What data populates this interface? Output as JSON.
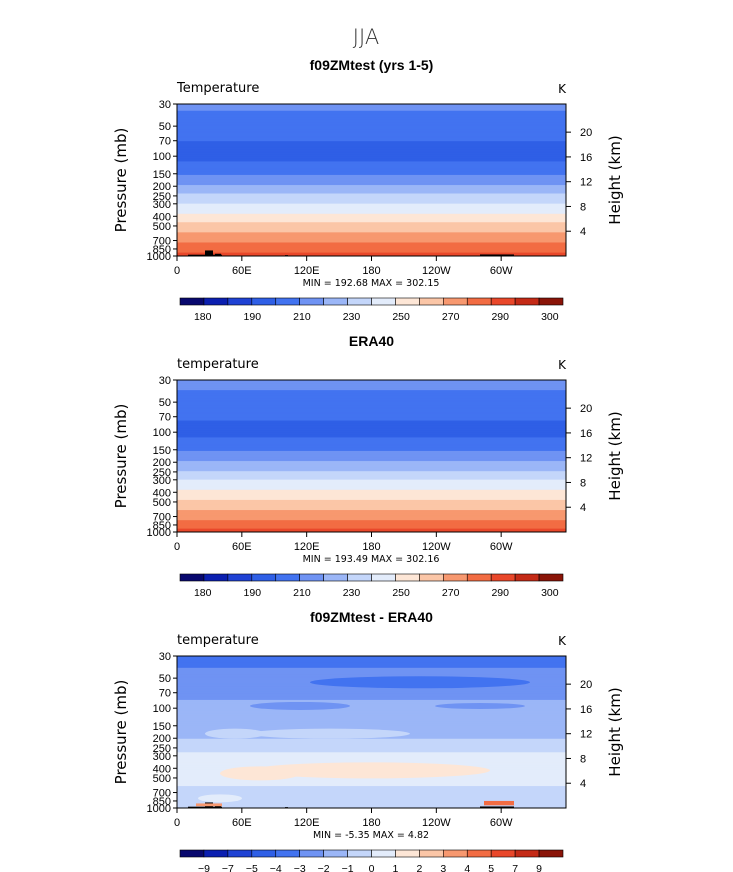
{
  "figure": {
    "suptitle": "JJA"
  },
  "chart_data": [
    {
      "type": "heatmap",
      "title": "f09ZMtest (yrs 1-5)",
      "variable_label": "Temperature",
      "units_label": "K",
      "ylabel": "Pressure  (mb)",
      "y2label": "Height  (km)",
      "xticks": [
        "0",
        "60E",
        "120E",
        "180",
        "120W",
        "60W"
      ],
      "xlim_deg": [
        0,
        360
      ],
      "yticks": [
        30,
        50,
        70,
        100,
        150,
        200,
        250,
        300,
        400,
        500,
        700,
        850,
        1000
      ],
      "ylim": [
        30,
        1000
      ],
      "y_scale": "log",
      "y2ticks": [
        20,
        16,
        12,
        8,
        4
      ],
      "stats": "MIN = 192.68  MAX = 302.15",
      "min": 192.68,
      "max": 302.15,
      "levels": [
        180,
        185,
        190,
        200,
        210,
        220,
        230,
        240,
        250,
        260,
        270,
        280,
        290,
        295,
        300
      ],
      "colorbar_labels": [
        "180",
        "190",
        "210",
        "230",
        "250",
        "270",
        "290",
        "300"
      ],
      "profile": [
        [
          30,
          212
        ],
        [
          50,
          205
        ],
        [
          70,
          200
        ],
        [
          100,
          196
        ],
        [
          150,
          208
        ],
        [
          200,
          222
        ],
        [
          250,
          232
        ],
        [
          300,
          241
        ],
        [
          400,
          253
        ],
        [
          500,
          263
        ],
        [
          700,
          278
        ],
        [
          850,
          287
        ],
        [
          1000,
          294
        ]
      ],
      "terrain": true
    },
    {
      "type": "heatmap",
      "title": "ERA40",
      "variable_label": "temperature",
      "units_label": "K",
      "ylabel": "Pressure  (mb)",
      "y2label": "Height  (km)",
      "xticks": [
        "0",
        "60E",
        "120E",
        "180",
        "120W",
        "60W"
      ],
      "xlim_deg": [
        0,
        360
      ],
      "yticks": [
        30,
        50,
        70,
        100,
        150,
        200,
        250,
        300,
        400,
        500,
        700,
        850,
        1000
      ],
      "ylim": [
        30,
        1000
      ],
      "y_scale": "log",
      "y2ticks": [
        20,
        16,
        12,
        8,
        4
      ],
      "stats": "MIN = 193.49  MAX = 302.16",
      "min": 193.49,
      "max": 302.16,
      "levels": [
        180,
        185,
        190,
        200,
        210,
        220,
        230,
        240,
        250,
        260,
        270,
        280,
        290,
        295,
        300
      ],
      "colorbar_labels": [
        "180",
        "190",
        "210",
        "230",
        "250",
        "270",
        "290",
        "300"
      ],
      "profile": [
        [
          30,
          213
        ],
        [
          50,
          206
        ],
        [
          70,
          201
        ],
        [
          100,
          197
        ],
        [
          150,
          209
        ],
        [
          200,
          221
        ],
        [
          250,
          231
        ],
        [
          300,
          240
        ],
        [
          400,
          252
        ],
        [
          500,
          262
        ],
        [
          700,
          277
        ],
        [
          850,
          286
        ],
        [
          1000,
          294
        ]
      ],
      "terrain": false
    },
    {
      "type": "heatmap",
      "title": "f09ZMtest - ERA40",
      "variable_label": "temperature",
      "units_label": "K",
      "ylabel": "Pressure  (mb)",
      "y2label": "Height  (km)",
      "xticks": [
        "0",
        "60E",
        "120E",
        "180",
        "120W",
        "60W"
      ],
      "xlim_deg": [
        0,
        360
      ],
      "yticks": [
        30,
        50,
        70,
        100,
        150,
        200,
        250,
        300,
        400,
        500,
        700,
        850,
        1000
      ],
      "ylim": [
        30,
        1000
      ],
      "y_scale": "log",
      "y2ticks": [
        20,
        16,
        12,
        8,
        4
      ],
      "stats": "MIN =   -5.35   MAX =    4.82",
      "min": -5.35,
      "max": 4.82,
      "levels": [
        -9,
        -7,
        -5,
        -4,
        -3,
        -2,
        -1,
        0,
        1,
        2,
        3,
        4,
        5,
        7,
        9
      ],
      "colorbar_labels": [
        "-9",
        "-7",
        "-5",
        "-4",
        "-3",
        "-2",
        "-1",
        "0",
        "1",
        "2",
        "3",
        "4",
        "5",
        "7",
        "9"
      ],
      "profile": [
        [
          30,
          -3.5
        ],
        [
          50,
          -2.5
        ],
        [
          70,
          -2.5
        ],
        [
          100,
          -1.5
        ],
        [
          150,
          -1.5
        ],
        [
          200,
          -1.0
        ],
        [
          250,
          -0.5
        ],
        [
          300,
          0.5
        ],
        [
          400,
          0.8
        ],
        [
          500,
          0.5
        ],
        [
          700,
          -0.5
        ],
        [
          850,
          -0.5
        ],
        [
          1000,
          -0.5
        ]
      ],
      "terrain": true
    }
  ],
  "colors": {
    "temperature_scale": [
      "#08086e",
      "#0b1fb0",
      "#1f42d4",
      "#2f5fe6",
      "#4273f0",
      "#6f93f3",
      "#9bb6f7",
      "#c4d6fa",
      "#e3ecfb",
      "#fde6d6",
      "#fbc6a7",
      "#f7986f",
      "#f26c43",
      "#e9472a",
      "#c42a16",
      "#8a1408"
    ]
  }
}
